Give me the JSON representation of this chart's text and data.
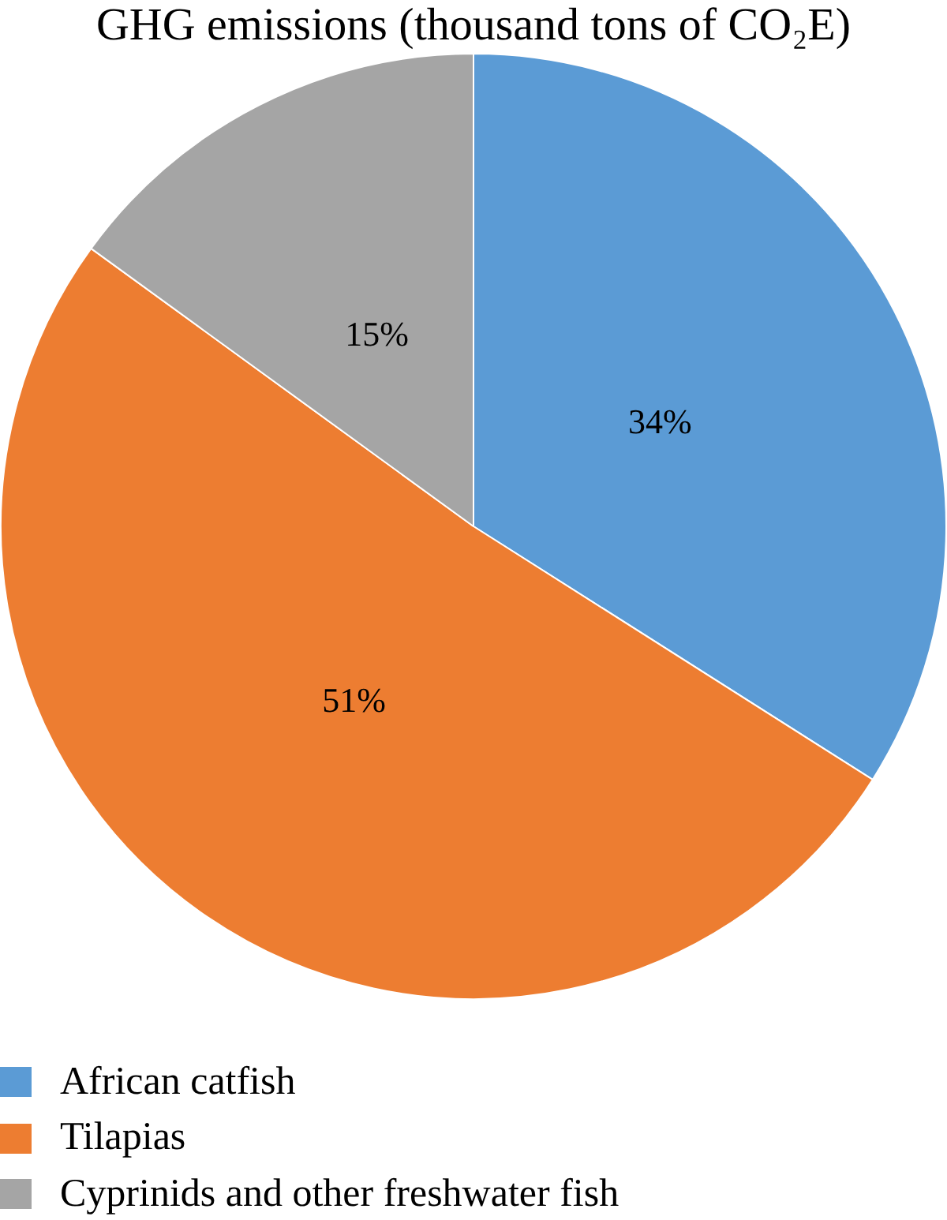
{
  "chart_data": {
    "type": "pie",
    "title": "GHG emissions (thousand tons of CO₂E)",
    "categories": [
      "African catfish",
      "Tilapias",
      "Cyprinids and other freshwater fish"
    ],
    "values": [
      34,
      51,
      15
    ],
    "colors": [
      "#5b9bd5",
      "#ed7d31",
      "#a5a5a5"
    ],
    "value_labels": [
      "34%",
      "51%",
      "15%"
    ],
    "legend": "bottom left"
  }
}
